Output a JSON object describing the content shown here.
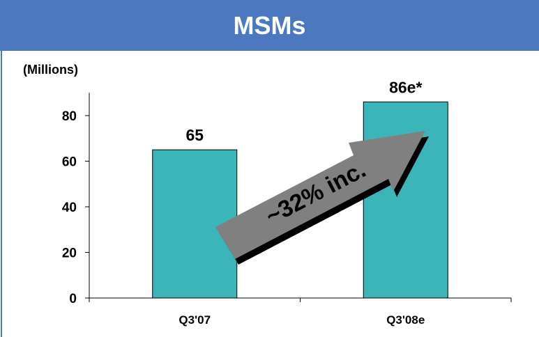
{
  "chart_data": {
    "type": "bar",
    "title": "MSMs",
    "ylabel": "(Millions)",
    "categories": [
      "Q3'07",
      "Q3'08e"
    ],
    "values": [
      65,
      86
    ],
    "value_labels": [
      "65",
      "86e*"
    ],
    "ylim": [
      0,
      90
    ],
    "yticks": [
      0,
      20,
      40,
      60,
      80
    ],
    "grid": false,
    "bar_color": "#3bb5b8",
    "annotation": "~32% inc."
  },
  "colors": {
    "title_bg": "#4b78bf",
    "arrow": "#808080",
    "arrow_shadow": "#000000"
  }
}
